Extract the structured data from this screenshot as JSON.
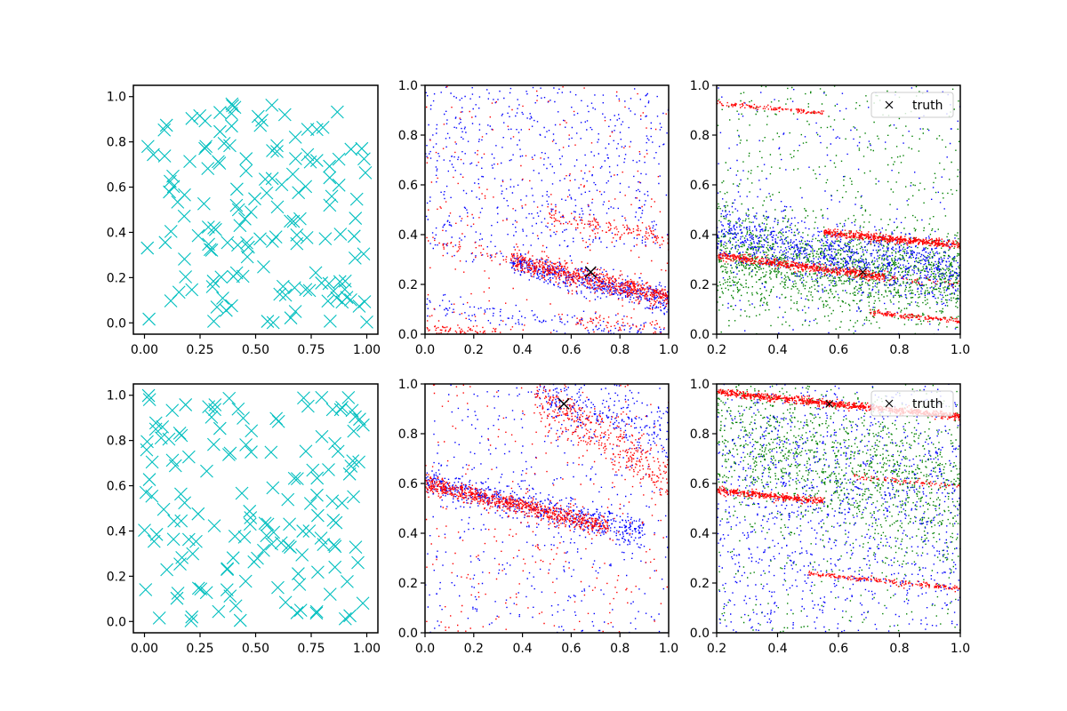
{
  "figure": {
    "title": "",
    "background": "#ffffff"
  },
  "chart_data": [
    {
      "panel": "row1-col1",
      "type": "scatter",
      "marker": "x-large",
      "color": "#00bfbf",
      "xlim": [
        -0.05,
        1.05
      ],
      "ylim": [
        -0.05,
        1.05
      ],
      "xticks": [
        "0.00",
        "0.25",
        "0.50",
        "0.75",
        "1.00"
      ],
      "yticks": [
        "0.0",
        "0.2",
        "0.4",
        "0.6",
        "0.8",
        "1.0"
      ],
      "series": [
        {
          "name": "samples",
          "description": "about 150 roughly uniform random points in [0,1]x[0,1]"
        }
      ]
    },
    {
      "panel": "row1-col2",
      "type": "scatter",
      "xlim": [
        0,
        1
      ],
      "ylim": [
        0,
        1
      ],
      "xticks": [
        "0.0",
        "0.2",
        "0.4",
        "0.6",
        "0.8",
        "1.0"
      ],
      "yticks": [
        "0.0",
        "0.2",
        "0.4",
        "0.6",
        "0.8",
        "1.0"
      ],
      "series": [
        {
          "name": "blue",
          "color": "#0000ff",
          "bands": [
            {
              "x": [
                0.35,
                1.0
              ],
              "y": [
                0.29,
                0.13
              ],
              "spread": 0.025,
              "n": 500
            },
            {
              "x": [
                0.0,
                1.0
              ],
              "y": [
                0.12,
                0.0
              ],
              "spread": 0.025,
              "n": 150
            },
            {
              "x": [
                0.0,
                1.0
              ],
              "y": [
                0.36,
                0.18
              ],
              "spread": 0.02,
              "n": 80
            }
          ],
          "background": {
            "n": 600,
            "ymin": 0.35
          }
        },
        {
          "name": "red",
          "color": "#ff0000",
          "bands": [
            {
              "x": [
                0.35,
                1.0
              ],
              "y": [
                0.3,
                0.15
              ],
              "spread": 0.02,
              "n": 700
            },
            {
              "x": [
                0.5,
                1.0
              ],
              "y": [
                0.48,
                0.38
              ],
              "spread": 0.02,
              "n": 150
            },
            {
              "x": [
                0.0,
                0.3
              ],
              "y": [
                0.03,
                0.0
              ],
              "spread": 0.015,
              "n": 80
            },
            {
              "x": [
                0.0,
                0.35
              ],
              "y": [
                0.38,
                0.31
              ],
              "spread": 0.015,
              "n": 40
            },
            {
              "x": [
                0.6,
                1.0
              ],
              "y": [
                0.06,
                0.02
              ],
              "spread": 0.015,
              "n": 60
            }
          ],
          "background": {
            "n": 250,
            "ymin": 0.0
          }
        }
      ],
      "truth": {
        "x": 0.68,
        "y": 0.25,
        "marker": "x-large"
      }
    },
    {
      "panel": "row1-col3",
      "type": "scatter",
      "xlim": [
        0.2,
        1
      ],
      "ylim": [
        0,
        1
      ],
      "xticks": [
        "0.2",
        "0.4",
        "0.6",
        "0.8",
        "1.0"
      ],
      "yticks": [
        "0.0",
        "0.2",
        "0.4",
        "0.6",
        "0.8",
        "1.0"
      ],
      "series": [
        {
          "name": "green",
          "color": "#008000",
          "bands": [
            {
              "x": [
                0.2,
                1.0
              ],
              "y": [
                0.32,
                0.22
              ],
              "spread": 0.09,
              "n": 1500
            }
          ],
          "background": {
            "n": 500,
            "ymin": 0.0
          }
        },
        {
          "name": "blue",
          "color": "#0000ff",
          "bands": [
            {
              "x": [
                0.2,
                1.0
              ],
              "y": [
                0.4,
                0.24
              ],
              "spread": 0.06,
              "n": 1000
            }
          ],
          "background": {
            "n": 250,
            "ymin": 0.0
          }
        },
        {
          "name": "red",
          "color": "#ff0000",
          "bands": [
            {
              "x": [
                0.2,
                0.75
              ],
              "y": [
                0.32,
                0.23
              ],
              "spread": 0.008,
              "n": 550
            },
            {
              "x": [
                0.55,
                1.0
              ],
              "y": [
                0.41,
                0.36
              ],
              "spread": 0.008,
              "n": 550
            },
            {
              "x": [
                0.2,
                0.55
              ],
              "y": [
                0.93,
                0.89
              ],
              "spread": 0.006,
              "n": 120
            },
            {
              "x": [
                0.7,
                1.0
              ],
              "y": [
                0.09,
                0.055
              ],
              "spread": 0.006,
              "n": 150
            },
            {
              "x": [
                0.6,
                1.0
              ],
              "y": [
                0.26,
                0.2
              ],
              "spread": 0.008,
              "n": 60
            }
          ]
        }
      ],
      "truth": {
        "x": 0.68,
        "y": 0.25,
        "marker": "x-small"
      },
      "legend": {
        "label": "truth",
        "location": "upper right"
      }
    },
    {
      "panel": "row2-col1",
      "type": "scatter",
      "marker": "x-large",
      "color": "#00bfbf",
      "xlim": [
        -0.05,
        1.05
      ],
      "ylim": [
        -0.05,
        1.05
      ],
      "xticks": [
        "0.00",
        "0.25",
        "0.50",
        "0.75",
        "1.00"
      ],
      "yticks": [
        "0.0",
        "0.2",
        "0.4",
        "0.6",
        "0.8",
        "1.0"
      ],
      "series": [
        {
          "name": "samples",
          "description": "about 150 roughly uniform random points in [0,1]x[0,1]"
        }
      ]
    },
    {
      "panel": "row2-col2",
      "type": "scatter",
      "xlim": [
        0,
        1
      ],
      "ylim": [
        0,
        1
      ],
      "xticks": [
        "0.0",
        "0.2",
        "0.4",
        "0.6",
        "0.8",
        "1.0"
      ],
      "yticks": [
        "0.0",
        "0.2",
        "0.4",
        "0.6",
        "0.8",
        "1.0"
      ],
      "series": [
        {
          "name": "blue",
          "color": "#0000ff",
          "bands": [
            {
              "x": [
                0.0,
                0.9
              ],
              "y": [
                0.61,
                0.4
              ],
              "spread": 0.03,
              "n": 600
            },
            {
              "x": [
                0.45,
                1.0
              ],
              "y": [
                0.96,
                0.8
              ],
              "spread": 0.05,
              "n": 250
            }
          ],
          "background": {
            "n": 450,
            "ymin": 0.0
          }
        },
        {
          "name": "red",
          "color": "#ff0000",
          "bands": [
            {
              "x": [
                0.0,
                0.75
              ],
              "y": [
                0.6,
                0.43
              ],
              "spread": 0.018,
              "n": 800
            },
            {
              "x": [
                0.45,
                1.0
              ],
              "y": [
                0.95,
                0.62
              ],
              "spread": 0.05,
              "n": 400
            }
          ],
          "background": {
            "n": 300,
            "ymin": 0.0
          }
        }
      ],
      "truth": {
        "x": 0.57,
        "y": 0.92,
        "marker": "x-large"
      }
    },
    {
      "panel": "row2-col3",
      "type": "scatter",
      "xlim": [
        0.2,
        1
      ],
      "ylim": [
        0,
        1
      ],
      "xticks": [
        "0.2",
        "0.4",
        "0.6",
        "0.8",
        "1.0"
      ],
      "yticks": [
        "0.0",
        "0.2",
        "0.4",
        "0.6",
        "0.8",
        "1.0"
      ],
      "series": [
        {
          "name": "green",
          "color": "#008000",
          "bands": [
            {
              "x": [
                0.2,
                1.0
              ],
              "y": [
                0.8,
                0.55
              ],
              "spread": 0.15,
              "n": 1200
            }
          ],
          "background": {
            "n": 400,
            "ymin": 0.0
          }
        },
        {
          "name": "blue",
          "color": "#0000ff",
          "bands": [
            {
              "x": [
                0.2,
                1.0
              ],
              "y": [
                0.5,
                0.5
              ],
              "spread": 0.28,
              "n": 900
            }
          ],
          "background": {
            "n": 400,
            "ymin": 0.0
          }
        },
        {
          "name": "red",
          "color": "#ff0000",
          "bands": [
            {
              "x": [
                0.2,
                1.0
              ],
              "y": [
                0.97,
                0.87
              ],
              "spread": 0.007,
              "n": 900
            },
            {
              "x": [
                0.2,
                0.55
              ],
              "y": [
                0.575,
                0.53
              ],
              "spread": 0.007,
              "n": 350
            },
            {
              "x": [
                0.65,
                1.0
              ],
              "y": [
                0.63,
                0.59
              ],
              "spread": 0.006,
              "n": 80
            },
            {
              "x": [
                0.5,
                1.0
              ],
              "y": [
                0.24,
                0.18
              ],
              "spread": 0.006,
              "n": 200
            }
          ]
        }
      ],
      "truth": {
        "x": 0.57,
        "y": 0.92,
        "marker": "x-small"
      },
      "legend": {
        "label": "truth",
        "location": "upper right"
      }
    }
  ]
}
